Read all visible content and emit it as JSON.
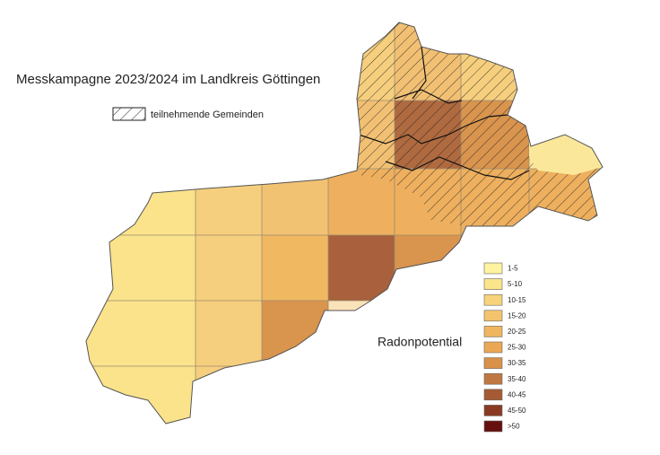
{
  "title": "Messkampagne 2023/2024 im Landkreis Göttingen",
  "hatch_legend": {
    "label": "teilnehmende Gemeinden"
  },
  "legend": {
    "title": "Radonpotential",
    "items": [
      {
        "label": "1-5",
        "color": "#fdf3a0"
      },
      {
        "label": "5-10",
        "color": "#fbe58a"
      },
      {
        "label": "10-15",
        "color": "#f7d37c"
      },
      {
        "label": "15-20",
        "color": "#f3c46d"
      },
      {
        "label": "20-25",
        "color": "#efb65f"
      },
      {
        "label": "25-30",
        "color": "#eba754"
      },
      {
        "label": "30-35",
        "color": "#d9914a"
      },
      {
        "label": "35-40",
        "color": "#c07843"
      },
      {
        "label": "40-45",
        "color": "#a65a34"
      },
      {
        "label": "45-50",
        "color": "#8a3a22"
      },
      {
        "label": ">50",
        "color": "#650f0f"
      }
    ]
  }
}
